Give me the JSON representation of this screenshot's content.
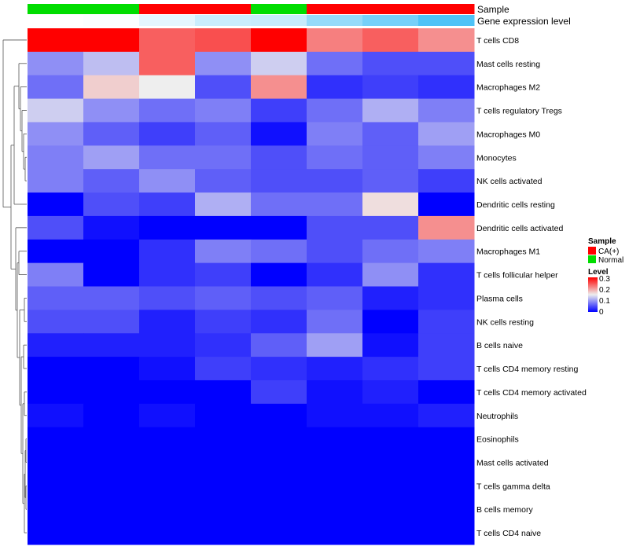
{
  "chart_data": {
    "type": "heatmap",
    "title": "",
    "annotation_titles": [
      "Sample",
      "Gene expression level"
    ],
    "columns": 8,
    "sample_annotation": [
      "Normal",
      "Normal",
      "CA(+)",
      "CA(+)",
      "Normal",
      "CA(+)",
      "CA(+)",
      "CA(+)"
    ],
    "gene_expression_level": [
      0.0,
      0.02,
      0.15,
      0.3,
      0.32,
      0.6,
      0.78,
      1.0
    ],
    "rows": [
      "T cells CD8",
      "Mast cells resting",
      "Macrophages M2",
      "T cells regulatory  Tregs",
      "Macrophages M0",
      "Monocytes",
      "NK cells activated",
      "Dendritic cells resting",
      "Dendritic cells activated",
      "Macrophages M1",
      "T cells follicular helper",
      "Plasma cells",
      "NK cells resting",
      "B cells naive",
      "T cells CD4 memory resting",
      "T cells CD4 memory activated",
      "Neutrophils",
      "Eosinophils",
      "Mast cells activated",
      "T cells gamma delta",
      "B cells memory",
      "T cells CD4 naive"
    ],
    "values": [
      [
        0.32,
        0.32,
        0.24,
        0.25,
        0.32,
        0.22,
        0.24,
        0.21
      ],
      [
        0.09,
        0.12,
        0.24,
        0.09,
        0.13,
        0.07,
        0.05,
        0.05
      ],
      [
        0.07,
        0.17,
        0.15,
        0.05,
        0.21,
        0.03,
        0.04,
        0.03
      ],
      [
        0.13,
        0.09,
        0.07,
        0.08,
        0.04,
        0.07,
        0.11,
        0.08
      ],
      [
        0.09,
        0.06,
        0.04,
        0.06,
        0.01,
        0.08,
        0.06,
        0.1
      ],
      [
        0.08,
        0.1,
        0.07,
        0.07,
        0.05,
        0.07,
        0.06,
        0.08
      ],
      [
        0.08,
        0.06,
        0.09,
        0.06,
        0.05,
        0.05,
        0.06,
        0.04
      ],
      [
        0.0,
        0.05,
        0.04,
        0.11,
        0.07,
        0.07,
        0.16,
        0.0
      ],
      [
        0.05,
        0.01,
        0.0,
        0.0,
        0.0,
        0.05,
        0.05,
        0.21
      ],
      [
        0.0,
        0.0,
        0.03,
        0.08,
        0.07,
        0.05,
        0.07,
        0.08
      ],
      [
        0.08,
        0.0,
        0.03,
        0.04,
        0.0,
        0.03,
        0.09,
        0.03
      ],
      [
        0.06,
        0.06,
        0.05,
        0.06,
        0.05,
        0.06,
        0.02,
        0.03
      ],
      [
        0.05,
        0.05,
        0.02,
        0.04,
        0.03,
        0.07,
        0.0,
        0.04
      ],
      [
        0.02,
        0.02,
        0.02,
        0.03,
        0.06,
        0.1,
        0.01,
        0.04
      ],
      [
        0.0,
        0.0,
        0.01,
        0.04,
        0.03,
        0.02,
        0.03,
        0.04
      ],
      [
        0.0,
        0.0,
        0.0,
        0.0,
        0.04,
        0.01,
        0.02,
        0.0
      ],
      [
        0.01,
        0.0,
        0.01,
        0.0,
        0.0,
        0.01,
        0.01,
        0.02
      ],
      [
        0.0,
        0.0,
        0.0,
        0.0,
        0.0,
        0.0,
        0.0,
        0.0
      ],
      [
        0.0,
        0.0,
        0.0,
        0.0,
        0.0,
        0.0,
        0.0,
        0.0
      ],
      [
        0.0,
        0.0,
        0.0,
        0.0,
        0.0,
        0.0,
        0.0,
        0.0
      ],
      [
        0.0,
        0.0,
        0.0,
        0.0,
        0.0,
        0.0,
        0.0,
        0.0
      ],
      [
        0.0,
        0.0,
        0.0,
        0.0,
        0.0,
        0.0,
        0.0,
        0.0
      ]
    ],
    "color_scale": {
      "low": "#0000ff",
      "mid": "#eeeeee",
      "high": "#ff0000",
      "min": 0,
      "mid_value": 0.15,
      "max": 0.3
    },
    "legend": {
      "sample_title": "Sample",
      "sample_items": [
        {
          "label": "CA(+)",
          "color": "#ff0000"
        },
        {
          "label": "Normal",
          "color": "#00dd00"
        }
      ],
      "level_title": "Level",
      "level_ticks": [
        "0.3",
        "0.2",
        "0.1",
        "0"
      ],
      "placement": "right"
    },
    "gene_expression_colors": {
      "low": "#ffffff",
      "high": "#4fc3f7"
    },
    "row_dendrogram": true
  }
}
